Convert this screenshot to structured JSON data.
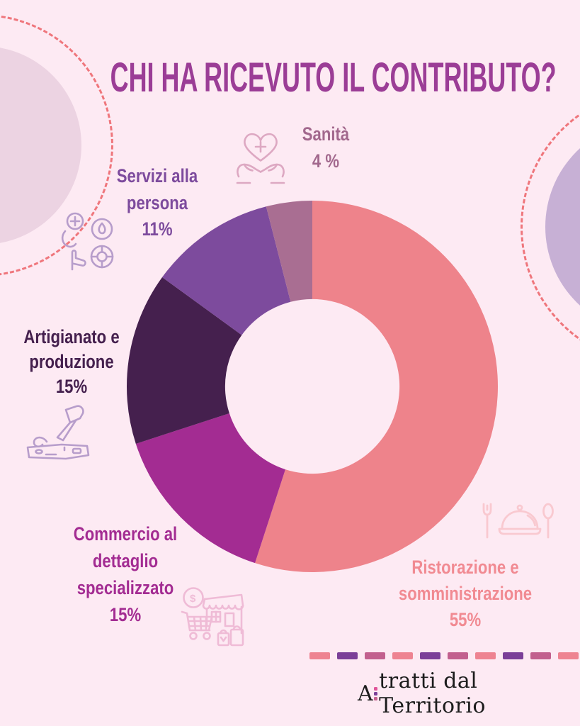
{
  "title": "CHI HA RICEVUTO IL CONTRIBUTO?",
  "palette": {
    "background": "#fdeaf3",
    "title_color": "#9b3d96",
    "dashed_circle_color": "#ef767c",
    "decor_circle_left": "#ecd3e2",
    "decor_circle_right": "#c7b0d5",
    "logo_text_color": "#1c1c1c"
  },
  "chart_data": {
    "type": "pie",
    "subtype": "donut",
    "title": "CHI HA RICEVUTO IL CONTRIBUTO?",
    "start_angle_deg": 0,
    "direction": "clockwise",
    "inner_radius_ratio": 0.47,
    "legend_position": "around-labels-with-icons",
    "segments": [
      {
        "label": "Ristorazione e somministrazione",
        "value_pct": 55,
        "color": "#ee838b",
        "label_color": "#f18a92",
        "lines": [
          "Ristorazione e",
          "somministrazione",
          "55%"
        ],
        "icon": "restaurant-icon"
      },
      {
        "label": "Commercio al dettaglio specializzato",
        "value_pct": 15,
        "color": "#a32c92",
        "label_color": "#a32c92",
        "lines": [
          "Commercio al",
          "dettaglio",
          "specializzato",
          "15%"
        ],
        "icon": "retail-store-icon"
      },
      {
        "label": "Artigianato e produzione",
        "value_pct": 15,
        "color": "#45204e",
        "label_color": "#45204e",
        "lines": [
          "Artigianato e",
          "produzione",
          "15%"
        ],
        "icon": "craft-chisel-icon"
      },
      {
        "label": "Servizi alla persona",
        "value_pct": 11,
        "color": "#7d4b9d",
        "label_color": "#7d4b9d",
        "lines": [
          "Servizi alla",
          "persona",
          "11%"
        ],
        "icon": "personal-services-icon"
      },
      {
        "label": "Sanità",
        "value_pct": 4,
        "color": "#a96e92",
        "label_color": "#a2688d",
        "lines": [
          "Sanità",
          "4 %"
        ],
        "icon": "health-heart-hands-icon"
      }
    ]
  },
  "divider": {
    "count": 10,
    "dash_colors": [
      "#ee8391",
      "#7b3f98",
      "#c2608e"
    ]
  },
  "logo": {
    "text_a": "A",
    "text_rest": "tratti dal Territorio",
    "dot_colors": [
      "#e0549a",
      "#7b3f98",
      "#c4608e"
    ]
  }
}
